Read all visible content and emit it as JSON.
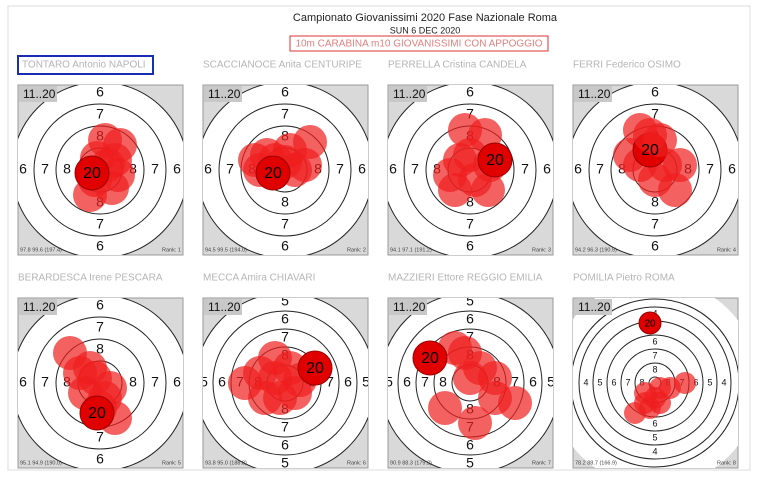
{
  "header": {
    "title": "Campionato Giovanissimi 2020 Fase Nazionale Roma",
    "date": "SUN 6 DEC 2020",
    "event": "10m CARABINA m10 GIOVANISSIMI CON APPOGGIO"
  },
  "panels": [
    {
      "name": "TONTARO Antonio NAPOLI",
      "series": "11..20",
      "rings": [
        6,
        7,
        8
      ],
      "shot_label": "20",
      "score": "97.8 99.6 (197.4)",
      "rank": "Rank: 1"
    },
    {
      "name": "SCACCIANOCE Anita CENTURIPE",
      "series": "11..20",
      "rings": [
        6,
        7,
        8
      ],
      "shot_label": "20",
      "score": "94.5 99.5 (194.0)",
      "rank": "Rank: 2"
    },
    {
      "name": "PERRELLA Cristina CANDELA",
      "series": "11..20",
      "rings": [
        6,
        7,
        8
      ],
      "shot_label": "20",
      "score": "94.1 97.1 (191.2)",
      "rank": "Rank: 3"
    },
    {
      "name": "FERRI Federico OSIMO",
      "series": "11..20",
      "rings": [
        6,
        7,
        8
      ],
      "shot_label": "20",
      "score": "94.2 96.3 (190.5)",
      "rank": "Rank: 4"
    },
    {
      "name": "BERARDESCA Irene PESCARA",
      "series": "11..20",
      "rings": [
        6,
        7,
        8
      ],
      "shot_label": "20",
      "score": "95.1 94.9 (190.0)",
      "rank": "Rank: 5"
    },
    {
      "name": "MECCA Amira CHIAVARI",
      "series": "11..20",
      "rings": [
        5,
        6,
        7,
        8
      ],
      "shot_label": "20",
      "score": "93.8 95.0 (188.8)",
      "rank": "Rank: 6"
    },
    {
      "name": "MAZZIERI Ettore REGGIO EMILIA",
      "series": "11..20",
      "rings": [
        5,
        6,
        7,
        8
      ],
      "shot_label": "20",
      "score": "90.9 88.3 (179.2)",
      "rank": "Rank: 7"
    },
    {
      "name": "POMILIA Pietro ROMA",
      "series": "11..20",
      "rings": [
        4,
        5,
        6,
        7,
        8
      ],
      "shot_label": "20",
      "score": "78.2 88.7 (166.9)",
      "rank": "Rank: 8"
    }
  ]
}
